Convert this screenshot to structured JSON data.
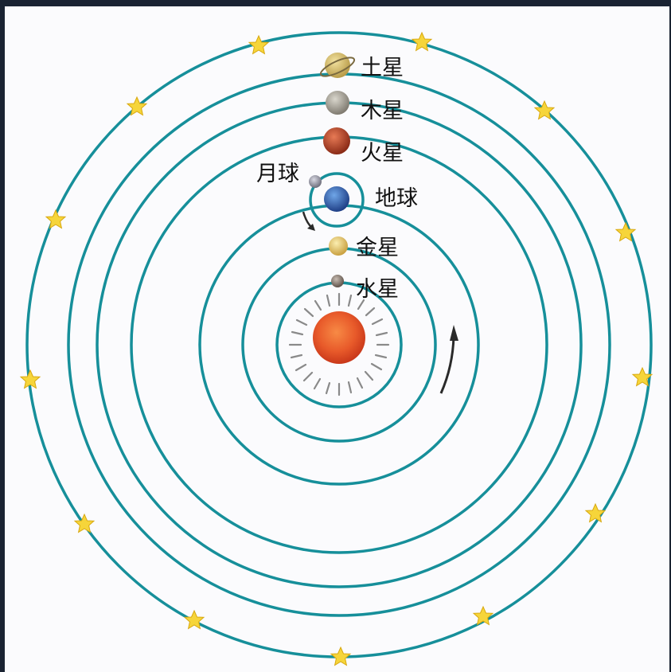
{
  "diagram": {
    "planets": [
      {
        "id": "saturn",
        "label": "土星",
        "color": "#d8c070"
      },
      {
        "id": "jupiter",
        "label": "木星",
        "color": "#a8a49a"
      },
      {
        "id": "mars",
        "label": "火星",
        "color": "#b8482a"
      },
      {
        "id": "earth",
        "label": "地球",
        "color": "#2f5fa8"
      },
      {
        "id": "moon",
        "label": "月球",
        "color": "#9a9aa8"
      },
      {
        "id": "venus",
        "label": "金星",
        "color": "#e0c266"
      },
      {
        "id": "mercury",
        "label": "水星",
        "color": "#8a7a70"
      }
    ],
    "colors": {
      "orbit": "#168f9a",
      "sun": "#e85a2a",
      "star": "#f6d53a",
      "ray": "#8a8a8a",
      "arrow": "#2a2a2a"
    }
  }
}
